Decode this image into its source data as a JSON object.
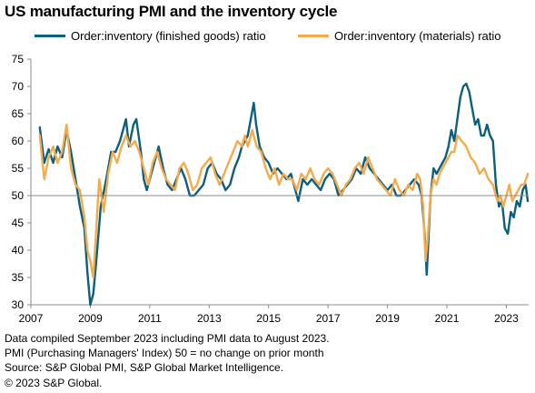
{
  "title": "US manufacturing PMI and the inventory cycle",
  "footer": {
    "line1": "Data compiled September 2023 including PMI data to August 2023.",
    "line2": "PMI (Purchasing Managers' Index) 50 = no change on prior month",
    "line3": "Source: S&P Global PMI, S&P Global Market Intelligence.",
    "line4": "© 2023 S&P Global."
  },
  "colors": {
    "finished": "#0d5f7e",
    "materials": "#f5ab4c",
    "reference": "#8c8c8c",
    "axis": "#8c8c8c"
  },
  "chart_data": {
    "type": "line",
    "xlim": [
      2007,
      2023.75
    ],
    "ylim": [
      30,
      75
    ],
    "x_ticks": [
      2007,
      2009,
      2011,
      2013,
      2015,
      2017,
      2019,
      2021,
      2023
    ],
    "y_ticks": [
      30,
      35,
      40,
      45,
      50,
      55,
      60,
      65,
      70,
      75
    ],
    "reference_line": 50,
    "grid": false,
    "legend_position": "top",
    "series": [
      {
        "name": "Order:inventory (finished goods) ratio",
        "color": "#0d5f7e",
        "points": [
          [
            2007.3,
            62.5
          ],
          [
            2007.45,
            56
          ],
          [
            2007.6,
            58.5
          ],
          [
            2007.75,
            56
          ],
          [
            2007.9,
            59
          ],
          [
            2008.05,
            57
          ],
          [
            2008.2,
            62
          ],
          [
            2008.35,
            58
          ],
          [
            2008.5,
            53
          ],
          [
            2008.65,
            48
          ],
          [
            2008.8,
            44
          ],
          [
            2008.9,
            36
          ],
          [
            2009.0,
            30
          ],
          [
            2009.1,
            32
          ],
          [
            2009.2,
            38
          ],
          [
            2009.35,
            48
          ],
          [
            2009.5,
            52
          ],
          [
            2009.6,
            55
          ],
          [
            2009.7,
            58
          ],
          [
            2009.85,
            58
          ],
          [
            2010.0,
            60
          ],
          [
            2010.1,
            62
          ],
          [
            2010.2,
            64
          ],
          [
            2010.3,
            59
          ],
          [
            2010.45,
            63
          ],
          [
            2010.55,
            64
          ],
          [
            2010.7,
            58
          ],
          [
            2010.8,
            53
          ],
          [
            2010.9,
            51
          ],
          [
            2011.0,
            53
          ],
          [
            2011.15,
            56
          ],
          [
            2011.3,
            59
          ],
          [
            2011.45,
            55
          ],
          [
            2011.6,
            52
          ],
          [
            2011.75,
            51
          ],
          [
            2011.9,
            53
          ],
          [
            2012.05,
            55
          ],
          [
            2012.2,
            53
          ],
          [
            2012.35,
            50
          ],
          [
            2012.5,
            50
          ],
          [
            2012.65,
            51
          ],
          [
            2012.8,
            52
          ],
          [
            2012.95,
            55
          ],
          [
            2013.1,
            56
          ],
          [
            2013.25,
            54
          ],
          [
            2013.4,
            53
          ],
          [
            2013.55,
            51
          ],
          [
            2013.7,
            52
          ],
          [
            2013.85,
            55
          ],
          [
            2014.0,
            57
          ],
          [
            2014.1,
            59
          ],
          [
            2014.2,
            60
          ],
          [
            2014.3,
            61
          ],
          [
            2014.4,
            64
          ],
          [
            2014.5,
            67
          ],
          [
            2014.58,
            63
          ],
          [
            2014.7,
            59
          ],
          [
            2014.85,
            57
          ],
          [
            2015.0,
            56
          ],
          [
            2015.15,
            54
          ],
          [
            2015.3,
            55
          ],
          [
            2015.45,
            54
          ],
          [
            2015.6,
            53
          ],
          [
            2015.75,
            54
          ],
          [
            2015.9,
            51
          ],
          [
            2016.0,
            49
          ],
          [
            2016.15,
            53
          ],
          [
            2016.3,
            52
          ],
          [
            2016.45,
            53
          ],
          [
            2016.6,
            52
          ],
          [
            2016.75,
            51
          ],
          [
            2016.9,
            53
          ],
          [
            2017.05,
            54
          ],
          [
            2017.2,
            53
          ],
          [
            2017.35,
            50
          ],
          [
            2017.5,
            51
          ],
          [
            2017.65,
            52
          ],
          [
            2017.8,
            53
          ],
          [
            2017.95,
            55
          ],
          [
            2018.1,
            54
          ],
          [
            2018.25,
            57
          ],
          [
            2018.4,
            55
          ],
          [
            2018.55,
            54
          ],
          [
            2018.7,
            53
          ],
          [
            2018.85,
            52
          ],
          [
            2019.0,
            51
          ],
          [
            2019.15,
            52
          ],
          [
            2019.3,
            50
          ],
          [
            2019.45,
            50
          ],
          [
            2019.6,
            51
          ],
          [
            2019.75,
            52
          ],
          [
            2019.9,
            53
          ],
          [
            2020.05,
            52
          ],
          [
            2020.15,
            50
          ],
          [
            2020.25,
            43
          ],
          [
            2020.32,
            35.5
          ],
          [
            2020.38,
            42
          ],
          [
            2020.45,
            50
          ],
          [
            2020.55,
            55
          ],
          [
            2020.65,
            54
          ],
          [
            2020.75,
            55
          ],
          [
            2020.85,
            56
          ],
          [
            2020.95,
            57
          ],
          [
            2021.05,
            59
          ],
          [
            2021.15,
            62
          ],
          [
            2021.25,
            60
          ],
          [
            2021.35,
            64
          ],
          [
            2021.45,
            68
          ],
          [
            2021.55,
            70
          ],
          [
            2021.65,
            70.5
          ],
          [
            2021.75,
            69
          ],
          [
            2021.85,
            66
          ],
          [
            2021.95,
            63
          ],
          [
            2022.05,
            64
          ],
          [
            2022.15,
            61
          ],
          [
            2022.25,
            61
          ],
          [
            2022.35,
            63
          ],
          [
            2022.45,
            61
          ],
          [
            2022.55,
            60
          ],
          [
            2022.65,
            52
          ],
          [
            2022.75,
            48
          ],
          [
            2022.85,
            49
          ],
          [
            2022.95,
            44
          ],
          [
            2023.05,
            43
          ],
          [
            2023.15,
            47
          ],
          [
            2023.25,
            46
          ],
          [
            2023.35,
            49
          ],
          [
            2023.45,
            48
          ],
          [
            2023.55,
            51
          ],
          [
            2023.65,
            52
          ],
          [
            2023.72,
            49
          ]
        ]
      },
      {
        "name": "Order:inventory (materials) ratio",
        "color": "#f5ab4c",
        "points": [
          [
            2007.3,
            61
          ],
          [
            2007.45,
            53
          ],
          [
            2007.6,
            57
          ],
          [
            2007.75,
            59
          ],
          [
            2007.9,
            56
          ],
          [
            2008.05,
            58
          ],
          [
            2008.2,
            63
          ],
          [
            2008.35,
            55
          ],
          [
            2008.5,
            52
          ],
          [
            2008.65,
            51
          ],
          [
            2008.8,
            46
          ],
          [
            2008.9,
            40
          ],
          [
            2009.0,
            38
          ],
          [
            2009.1,
            35
          ],
          [
            2009.2,
            44
          ],
          [
            2009.3,
            53
          ],
          [
            2009.45,
            47
          ],
          [
            2009.6,
            54
          ],
          [
            2009.75,
            58
          ],
          [
            2009.9,
            56
          ],
          [
            2010.05,
            59
          ],
          [
            2010.2,
            61
          ],
          [
            2010.35,
            59
          ],
          [
            2010.5,
            60
          ],
          [
            2010.65,
            58
          ],
          [
            2010.8,
            55
          ],
          [
            2010.95,
            52
          ],
          [
            2011.1,
            56
          ],
          [
            2011.25,
            58
          ],
          [
            2011.4,
            55
          ],
          [
            2011.55,
            53
          ],
          [
            2011.7,
            52
          ],
          [
            2011.85,
            51
          ],
          [
            2012.0,
            55
          ],
          [
            2012.15,
            56
          ],
          [
            2012.3,
            54
          ],
          [
            2012.45,
            51
          ],
          [
            2012.6,
            52
          ],
          [
            2012.75,
            55
          ],
          [
            2012.9,
            56
          ],
          [
            2013.05,
            57
          ],
          [
            2013.2,
            54
          ],
          [
            2013.35,
            52
          ],
          [
            2013.5,
            54
          ],
          [
            2013.65,
            56
          ],
          [
            2013.8,
            58
          ],
          [
            2013.95,
            60
          ],
          [
            2014.1,
            59
          ],
          [
            2014.2,
            61
          ],
          [
            2014.3,
            59
          ],
          [
            2014.45,
            62
          ],
          [
            2014.6,
            59
          ],
          [
            2014.75,
            58
          ],
          [
            2014.9,
            55
          ],
          [
            2015.05,
            53
          ],
          [
            2015.2,
            55
          ],
          [
            2015.35,
            52
          ],
          [
            2015.5,
            54
          ],
          [
            2015.65,
            53
          ],
          [
            2015.8,
            53
          ],
          [
            2015.95,
            51
          ],
          [
            2016.1,
            54
          ],
          [
            2016.25,
            53
          ],
          [
            2016.4,
            55
          ],
          [
            2016.55,
            53
          ],
          [
            2016.7,
            52
          ],
          [
            2016.85,
            54
          ],
          [
            2017.0,
            55
          ],
          [
            2017.15,
            54
          ],
          [
            2017.3,
            52
          ],
          [
            2017.45,
            50
          ],
          [
            2017.6,
            52
          ],
          [
            2017.75,
            53
          ],
          [
            2017.9,
            55
          ],
          [
            2018.05,
            56
          ],
          [
            2018.2,
            54
          ],
          [
            2018.35,
            57
          ],
          [
            2018.5,
            55
          ],
          [
            2018.65,
            53
          ],
          [
            2018.8,
            52
          ],
          [
            2018.95,
            51
          ],
          [
            2019.1,
            50
          ],
          [
            2019.25,
            53
          ],
          [
            2019.4,
            51
          ],
          [
            2019.55,
            50
          ],
          [
            2019.7,
            52
          ],
          [
            2019.85,
            51
          ],
          [
            2020.0,
            54
          ],
          [
            2020.1,
            53
          ],
          [
            2020.2,
            48
          ],
          [
            2020.28,
            38
          ],
          [
            2020.35,
            42
          ],
          [
            2020.45,
            50
          ],
          [
            2020.55,
            53
          ],
          [
            2020.65,
            52
          ],
          [
            2020.75,
            54
          ],
          [
            2020.85,
            55
          ],
          [
            2020.95,
            56
          ],
          [
            2021.05,
            57
          ],
          [
            2021.15,
            58
          ],
          [
            2021.25,
            58
          ],
          [
            2021.35,
            61
          ],
          [
            2021.5,
            60
          ],
          [
            2021.65,
            59
          ],
          [
            2021.8,
            57
          ],
          [
            2021.95,
            56
          ],
          [
            2022.1,
            54
          ],
          [
            2022.25,
            55
          ],
          [
            2022.4,
            53
          ],
          [
            2022.55,
            52
          ],
          [
            2022.7,
            49
          ],
          [
            2022.8,
            50
          ],
          [
            2022.9,
            48
          ],
          [
            2023.0,
            50
          ],
          [
            2023.1,
            52
          ],
          [
            2023.2,
            49
          ],
          [
            2023.3,
            50
          ],
          [
            2023.4,
            51
          ],
          [
            2023.5,
            52
          ],
          [
            2023.6,
            52
          ],
          [
            2023.72,
            54
          ]
        ]
      }
    ]
  }
}
